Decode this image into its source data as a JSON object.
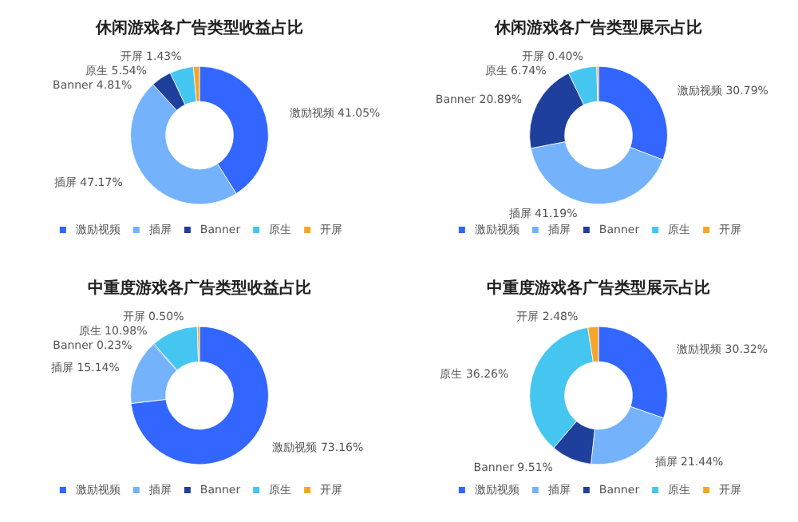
{
  "chart_data": [
    {
      "type": "donut",
      "title": "休闲游戏各广告类型收益占比",
      "categories": [
        "激励视频",
        "插屏",
        "Banner",
        "原生",
        "开屏"
      ],
      "values": [
        41.05,
        47.17,
        4.81,
        5.54,
        1.43
      ],
      "value_labels": [
        "41.05%",
        "47.17%",
        "4.81%",
        "5.54%",
        "1.43%"
      ],
      "colors": [
        "#3366ff",
        "#74b2fb",
        "#1e3f9c",
        "#45c6f0",
        "#f7a52a"
      ],
      "legend": "bottom"
    },
    {
      "type": "donut",
      "title": "休闲游戏各广告类型展示占比",
      "categories": [
        "激励视频",
        "插屏",
        "Banner",
        "原生",
        "开屏"
      ],
      "values": [
        30.79,
        41.19,
        20.89,
        6.74,
        0.4
      ],
      "value_labels": [
        "30.79%",
        "41.19%",
        "20.89%",
        "6.74%",
        "0.40%"
      ],
      "colors": [
        "#3366ff",
        "#74b2fb",
        "#1e3f9c",
        "#45c6f0",
        "#f7a52a"
      ],
      "legend": "bottom"
    },
    {
      "type": "donut",
      "title": "中重度游戏各广告类型收益占比",
      "categories": [
        "激励视频",
        "插屏",
        "Banner",
        "原生",
        "开屏"
      ],
      "values": [
        73.16,
        15.14,
        0.23,
        10.98,
        0.5
      ],
      "value_labels": [
        "73.16%",
        "15.14%",
        "0.23%",
        "10.98%",
        "0.50%"
      ],
      "colors": [
        "#3366ff",
        "#74b2fb",
        "#1e3f9c",
        "#45c6f0",
        "#f7a52a"
      ],
      "legend": "bottom"
    },
    {
      "type": "donut",
      "title": "中重度游戏各广告类型展示占比",
      "categories": [
        "激励视频",
        "插屏",
        "Banner",
        "原生",
        "开屏"
      ],
      "values": [
        30.32,
        21.44,
        9.51,
        36.26,
        2.48
      ],
      "value_labels": [
        "30.32%",
        "21.44%",
        "9.51%",
        "36.26%",
        "2.48%"
      ],
      "colors": [
        "#3366ff",
        "#74b2fb",
        "#1e3f9c",
        "#45c6f0",
        "#f7a52a"
      ],
      "legend": "bottom"
    }
  ]
}
